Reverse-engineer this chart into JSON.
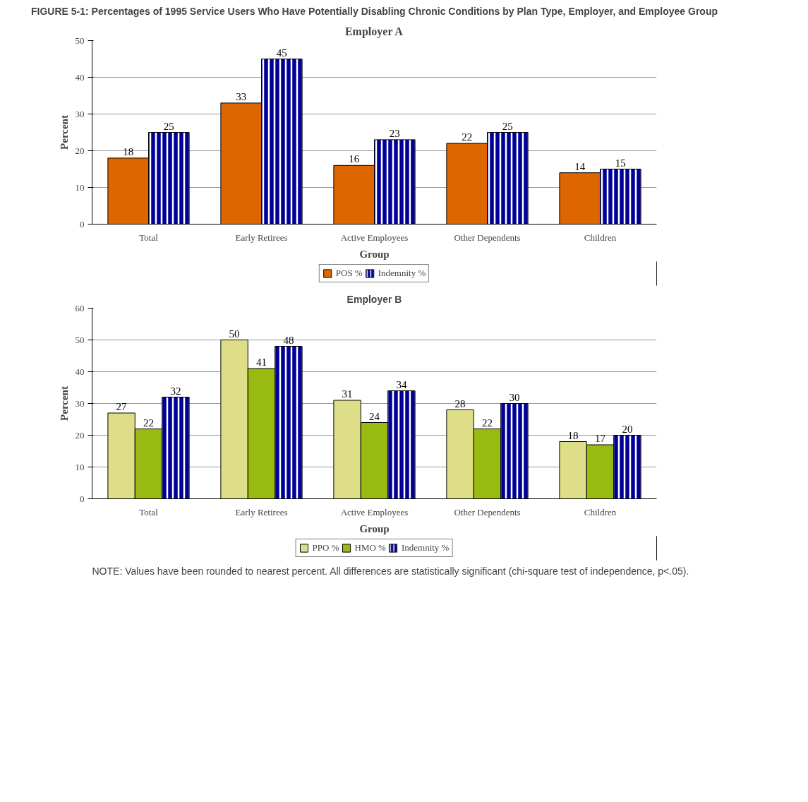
{
  "chart_data": [
    {
      "type": "bar",
      "title": "FIGURE 5-1: Percentages of 1995 Service Users Who Have Potentially Disabling Chronic Conditions by Plan Type, Employer, and Employee Group",
      "subtitle": "Employer A",
      "xlabel": "Group",
      "ylabel": "Percent",
      "categories": [
        "Total",
        "Early Retirees",
        "Active Employees",
        "Other Dependents",
        "Children"
      ],
      "series": [
        {
          "name": "POS %",
          "color": "#dd6600",
          "values": [
            18,
            33,
            16,
            22,
            14
          ]
        },
        {
          "name": "Indemnity %",
          "color": "#000099",
          "values": [
            25,
            45,
            23,
            25,
            15
          ]
        }
      ],
      "ylim": [
        0,
        50
      ],
      "yticks": [
        0,
        10,
        20,
        30,
        40,
        50
      ],
      "grid": "y",
      "legend": "bottom",
      "data_labels": true
    },
    {
      "type": "bar",
      "title": "Employer B",
      "xlabel": "Group",
      "ylabel": "Percent",
      "categories": [
        "Total",
        "Early Retirees",
        "Active Employees",
        "Other Dependents",
        "Children"
      ],
      "series": [
        {
          "name": "PPO %",
          "color": "#dede88",
          "values": [
            27,
            50,
            31,
            28,
            18
          ]
        },
        {
          "name": "HMO %",
          "color": "#99bb11",
          "values": [
            22,
            41,
            24,
            22,
            17
          ]
        },
        {
          "name": "Indemnity %",
          "color": "#000099",
          "values": [
            32,
            48,
            34,
            30,
            20
          ]
        }
      ],
      "ylim": [
        0,
        60
      ],
      "yticks": [
        0,
        10,
        20,
        30,
        40,
        50,
        60
      ],
      "grid": "y",
      "legend": "bottom",
      "data_labels": true,
      "annotations": [
        "NOTE: Values have been rounded to nearest percent. All differences are statistically significant (chi-square test of independence, p<.05)."
      ]
    }
  ]
}
